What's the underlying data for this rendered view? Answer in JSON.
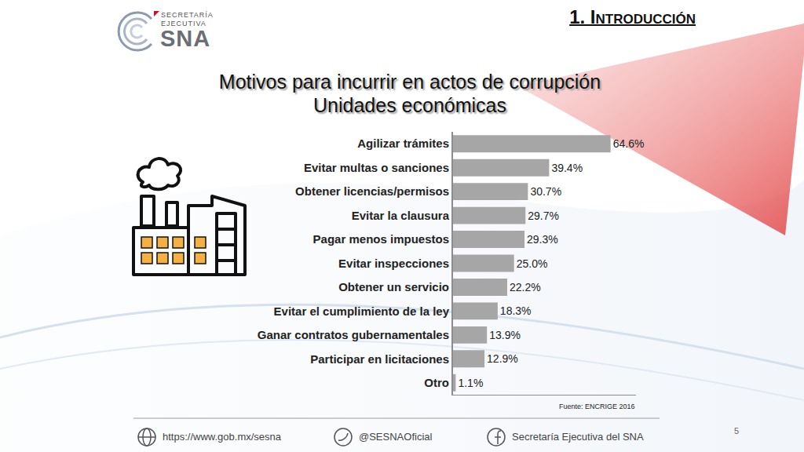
{
  "chart_data": {
    "type": "bar",
    "title": "Motivos para incurrir en actos de corrupción",
    "subtitle": "Unidades económicas",
    "annotations": [
      "Fuente: ENCRIGE 2016"
    ],
    "categories": [
      "Agilizar trámites",
      "Evitar multas o sanciones",
      "Obtener licencias/permisos",
      "Evitar la clausura",
      "Pagar menos impuestos",
      "Evitar inspecciones",
      "Obtener un servicio",
      "Evitar el cumplimiento de la ley",
      "Ganar contratos gubernamentales",
      "Participar en licitaciones",
      "Otro"
    ],
    "values": [
      64.6,
      39.4,
      30.7,
      29.7,
      29.3,
      25.0,
      22.2,
      18.3,
      13.9,
      12.9,
      1.1
    ],
    "value_labels": [
      "64.6%",
      "39.4%",
      "30.7%",
      "29.7%",
      "29.3%",
      "25.0%",
      "22.2%",
      "18.3%",
      "13.9%",
      "12.9%",
      "1.1%"
    ],
    "color": "#a6a6a6",
    "orientation": "horizontal",
    "data_labels": true,
    "tick_labels": "y",
    "grid": false,
    "xlim": [
      0,
      75
    ]
  },
  "slide": {
    "section": "1. Introducción",
    "logo": {
      "line1": "SECRETARÍA",
      "line2": "EJECUTIVA",
      "name": "SNA"
    },
    "footer": [
      "https://www.gob.mx/sesna",
      "@SESNAOficial",
      "Secretaría Ejecutiva del SNA"
    ],
    "page": "5"
  }
}
